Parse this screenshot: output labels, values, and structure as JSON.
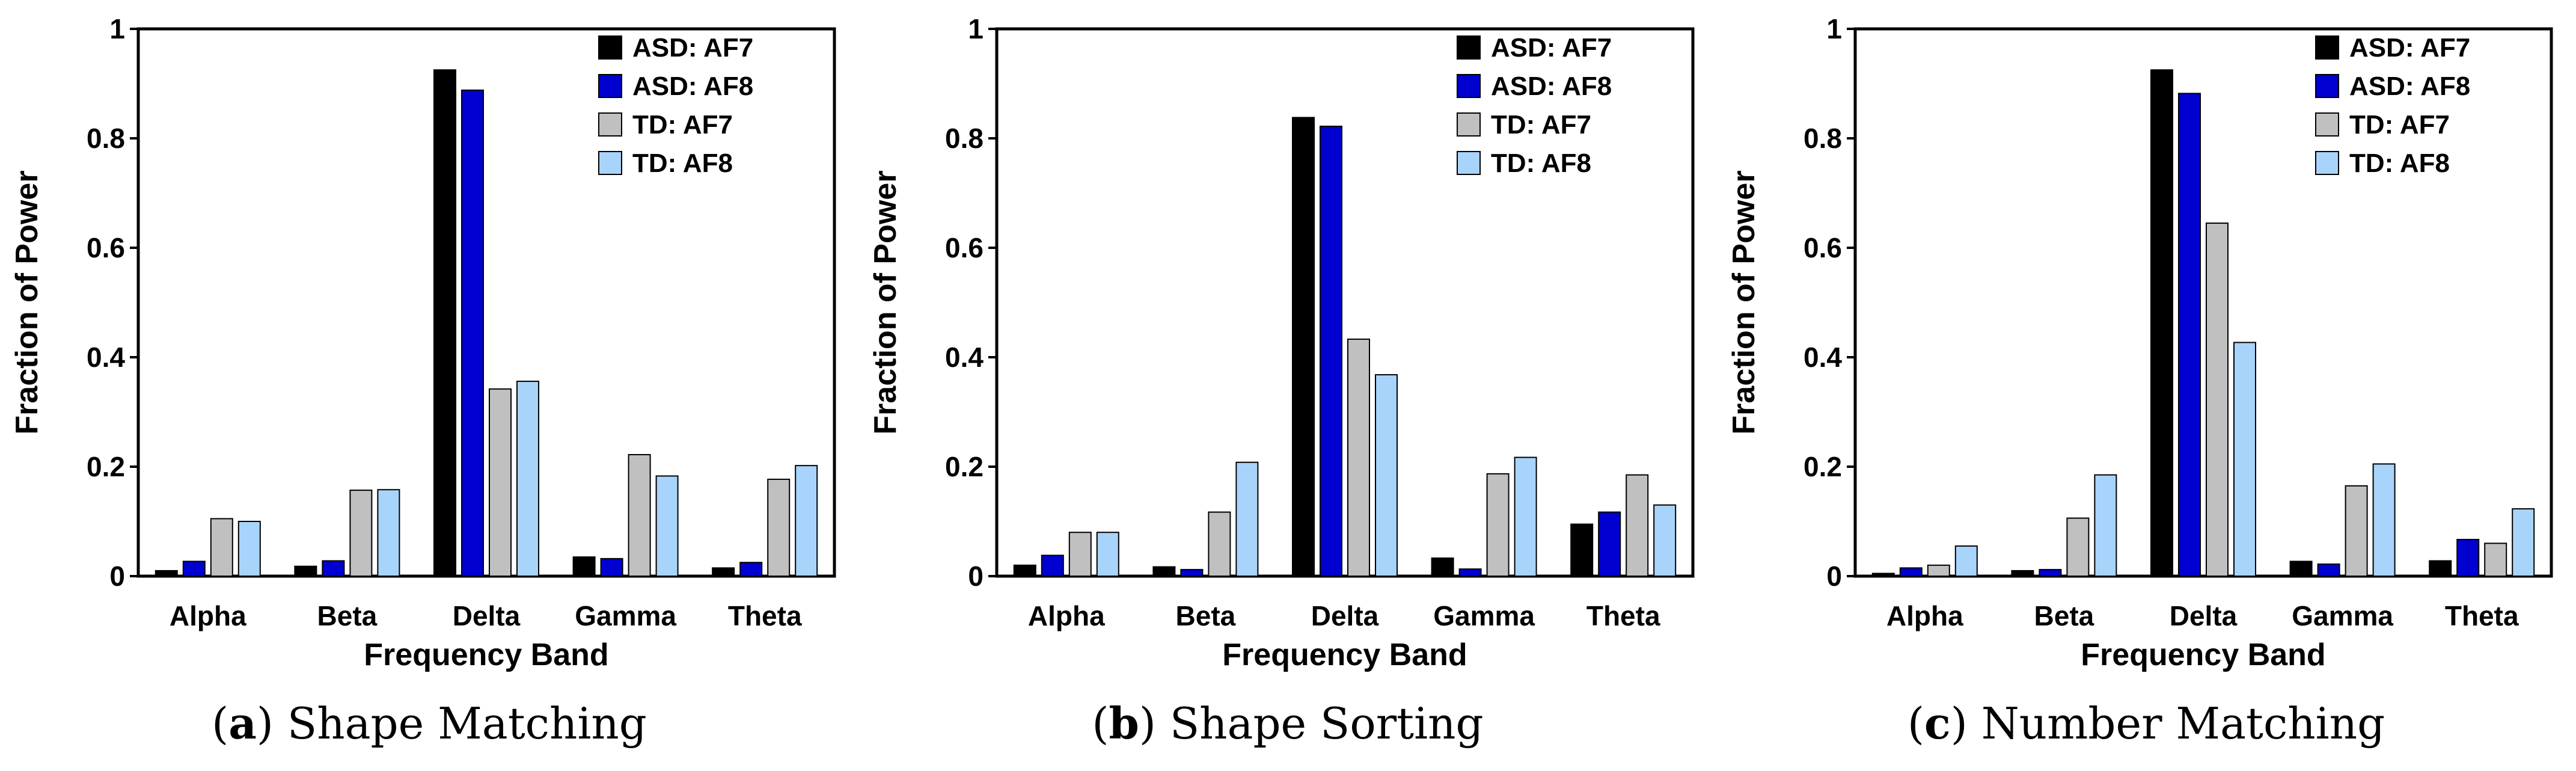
{
  "colors": {
    "ASD: AF7": "#000000",
    "ASD: AF8": "#0000d0",
    "TD: AF7": "#c0c0c0",
    "TD: AF8": "#a8d4fb",
    "axis": "#000000"
  },
  "chart_data": [
    {
      "type": "bar",
      "caption_letter": "a",
      "caption_text": "Shape Matching",
      "xlabel": "Frequency Band",
      "ylabel": "Fraction of Power",
      "ylim": [
        0,
        1
      ],
      "yticks": [
        "0",
        "0.2",
        "0.4",
        "0.6",
        "0.8",
        "1"
      ],
      "categories": [
        "Alpha",
        "Beta",
        "Delta",
        "Gamma",
        "Theta"
      ],
      "legend_position": "top-right",
      "series": [
        {
          "name": "ASD: AF7",
          "values": [
            0.01,
            0.018,
            0.925,
            0.035,
            0.015
          ]
        },
        {
          "name": "ASD: AF8",
          "values": [
            0.027,
            0.028,
            0.888,
            0.032,
            0.025
          ]
        },
        {
          "name": "TD: AF7",
          "values": [
            0.105,
            0.157,
            0.342,
            0.222,
            0.177
          ]
        },
        {
          "name": "TD: AF8",
          "values": [
            0.1,
            0.158,
            0.356,
            0.183,
            0.202
          ]
        }
      ]
    },
    {
      "type": "bar",
      "caption_letter": "b",
      "caption_text": "Shape Sorting",
      "xlabel": "Frequency Band",
      "ylabel": "Fraction of Power",
      "ylim": [
        0,
        1
      ],
      "yticks": [
        "0",
        "0.2",
        "0.4",
        "0.6",
        "0.8",
        "1"
      ],
      "categories": [
        "Alpha",
        "Beta",
        "Delta",
        "Gamma",
        "Theta"
      ],
      "legend_position": "top-right",
      "series": [
        {
          "name": "ASD: AF7",
          "values": [
            0.02,
            0.017,
            0.838,
            0.033,
            0.095
          ]
        },
        {
          "name": "ASD: AF8",
          "values": [
            0.038,
            0.012,
            0.822,
            0.013,
            0.117
          ]
        },
        {
          "name": "TD: AF7",
          "values": [
            0.08,
            0.117,
            0.433,
            0.187,
            0.185
          ]
        },
        {
          "name": "TD: AF8",
          "values": [
            0.08,
            0.208,
            0.368,
            0.217,
            0.13
          ]
        }
      ]
    },
    {
      "type": "bar",
      "caption_letter": "c",
      "caption_text": "Number Matching",
      "xlabel": "Frequency Band",
      "ylabel": "Fraction of Power",
      "ylim": [
        0,
        1
      ],
      "yticks": [
        "0",
        "0.2",
        "0.4",
        "0.6",
        "0.8",
        "1"
      ],
      "categories": [
        "Alpha",
        "Beta",
        "Delta",
        "Gamma",
        "Theta"
      ],
      "legend_position": "top-right",
      "series": [
        {
          "name": "ASD: AF7",
          "values": [
            0.005,
            0.01,
            0.925,
            0.027,
            0.028
          ]
        },
        {
          "name": "ASD: AF8",
          "values": [
            0.015,
            0.012,
            0.882,
            0.022,
            0.067
          ]
        },
        {
          "name": "TD: AF7",
          "values": [
            0.02,
            0.106,
            0.645,
            0.165,
            0.06
          ]
        },
        {
          "name": "TD: AF8",
          "values": [
            0.055,
            0.185,
            0.427,
            0.205,
            0.123
          ]
        }
      ]
    }
  ]
}
